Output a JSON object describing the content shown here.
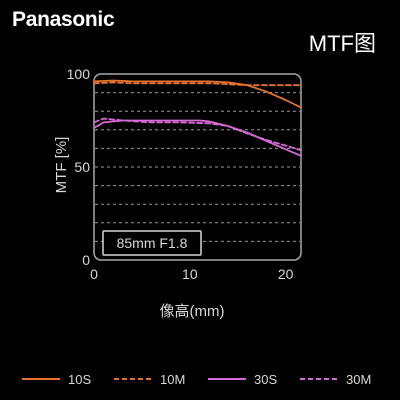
{
  "brand": {
    "name": "Panasonic"
  },
  "chart_data": {
    "type": "line",
    "title": "MTF图",
    "xlabel": "像高(mm)",
    "ylabel": "MTF [%]",
    "xlim": [
      0,
      21.6
    ],
    "ylim": [
      0,
      100
    ],
    "xticks": [
      0,
      10,
      20
    ],
    "yticks": [
      0,
      50,
      100
    ],
    "grid": true,
    "annotation": "85mm F1.8",
    "legend_position": "bottom",
    "series": [
      {
        "name": "10S",
        "color": "#e8742a",
        "dashed": false,
        "points": [
          [
            0,
            96
          ],
          [
            2,
            96.5
          ],
          [
            4,
            96
          ],
          [
            6,
            96
          ],
          [
            8,
            96
          ],
          [
            10,
            96
          ],
          [
            12,
            96
          ],
          [
            14,
            95.5
          ],
          [
            16,
            94
          ],
          [
            18,
            90.5
          ],
          [
            20,
            86
          ],
          [
            21.6,
            82
          ]
        ]
      },
      {
        "name": "10M",
        "color": "#e8742a",
        "dashed": true,
        "points": [
          [
            0,
            95
          ],
          [
            2,
            95.5
          ],
          [
            4,
            95
          ],
          [
            6,
            95
          ],
          [
            8,
            95
          ],
          [
            10,
            95
          ],
          [
            12,
            95
          ],
          [
            14,
            94.5
          ],
          [
            16,
            94
          ],
          [
            18,
            94
          ],
          [
            20,
            94
          ],
          [
            21.6,
            94
          ]
        ]
      },
      {
        "name": "30S",
        "color": "#d86ad8",
        "dashed": false,
        "points": [
          [
            0,
            71
          ],
          [
            1,
            74
          ],
          [
            3,
            75
          ],
          [
            6,
            75
          ],
          [
            9,
            75
          ],
          [
            11,
            75
          ],
          [
            12,
            74.5
          ],
          [
            14,
            72
          ],
          [
            16,
            68.5
          ],
          [
            18,
            64
          ],
          [
            20,
            59.5
          ],
          [
            21.6,
            56
          ]
        ]
      },
      {
        "name": "30M",
        "color": "#d86ad8",
        "dashed": true,
        "points": [
          [
            0,
            74
          ],
          [
            1,
            76
          ],
          [
            3,
            75
          ],
          [
            6,
            74
          ],
          [
            9,
            74
          ],
          [
            12,
            73.5
          ],
          [
            14,
            72
          ],
          [
            16,
            68
          ],
          [
            18,
            64.5
          ],
          [
            20,
            61.5
          ],
          [
            21.6,
            59
          ]
        ]
      }
    ]
  }
}
